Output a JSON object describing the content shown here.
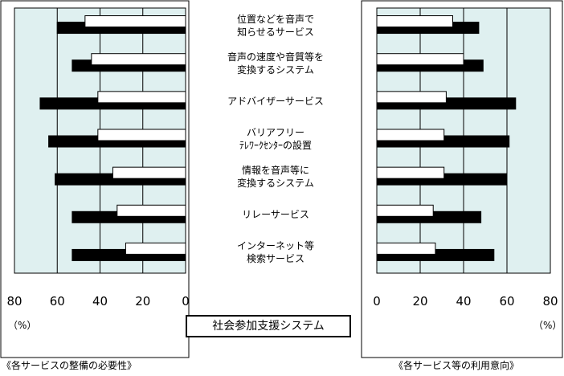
{
  "chart_data": [
    {
      "type": "bar",
      "orientation": "horizontal",
      "direction": "right-to-left",
      "title": "《各サービスの整備の必要性》",
      "categories": [
        "位置などを音声で知らせるサービス",
        "音声の速度や音質等を変換するシステム",
        "アドバイザーサービス",
        "バリアフリーテレワークセンターの設置",
        "情報を音声等に変換するシステム",
        "リレーサービス",
        "インターネット等検索サービス"
      ],
      "series": [
        {
          "color": "#ffffff",
          "values": [
            47,
            44,
            41,
            41,
            34,
            32,
            28
          ]
        },
        {
          "color": "#000000",
          "values": [
            60,
            53,
            68,
            64,
            61,
            53,
            53
          ]
        }
      ],
      "xlim": [
        0,
        80
      ],
      "xticks": [
        "80",
        "60",
        "40",
        "20",
        "0"
      ],
      "unit": "（%）",
      "background": "#dff0f0"
    },
    {
      "type": "bar",
      "orientation": "horizontal",
      "direction": "left-to-right",
      "title": "《各サービス等の利用意向》",
      "categories": [
        "位置などを音声で知らせるサービス",
        "音声の速度や音質等を変換するシステム",
        "アドバイザーサービス",
        "バリアフリーテレワークセンターの設置",
        "情報を音声等に変換するシステム",
        "リレーサービス",
        "インターネット等検索サービス"
      ],
      "series": [
        {
          "color": "#ffffff",
          "values": [
            35,
            40,
            32,
            31,
            31,
            26,
            27
          ]
        },
        {
          "color": "#000000",
          "values": [
            47,
            49,
            64,
            61,
            60,
            48,
            54
          ]
        }
      ],
      "xlim": [
        0,
        80
      ],
      "xticks": [
        "0",
        "20",
        "40",
        "60",
        "80"
      ],
      "unit": "（%）",
      "background": "#dff0f0"
    }
  ],
  "category_labels": [
    [
      "位置などを音声で",
      "知らせるサービス"
    ],
    [
      "音声の速度や音質等を",
      "変換するシステム"
    ],
    [
      "アドバイザーサービス"
    ],
    [
      "バリアフリー",
      "ﾃﾚﾜｰｸｾﾝﾀｰの設置"
    ],
    [
      "情報を音声等に",
      "変換するシステム"
    ],
    [
      "リレーサービス"
    ],
    [
      "インターネット等",
      "検索サービス"
    ]
  ],
  "center_title": "社会参加支援システム",
  "captions": {
    "left": "《各サービスの整備の必要性》",
    "right": "《各サービス等の利用意向》"
  },
  "units": {
    "left": "（%）",
    "right": "（%）"
  }
}
